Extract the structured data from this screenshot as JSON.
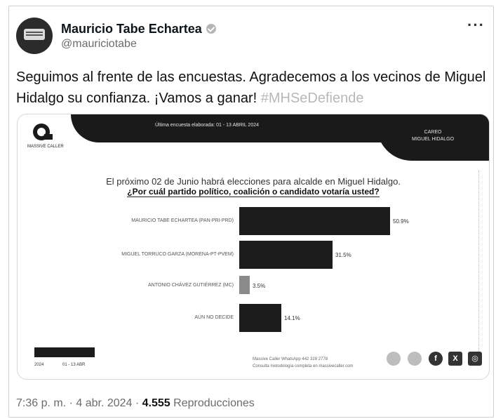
{
  "tweet": {
    "author_name": "Mauricio Tabe Echartea",
    "handle": "@mauriciotabe",
    "more_label": "···",
    "text": "Seguimos al frente de las encuestas. Agradecemos a los vecinos de Miguel Hidalgo su confianza. ¡Vamos a ganar!",
    "hashtag": "#MHSeDefiende"
  },
  "poll": {
    "survey_date": "Última encuesta elaborada:  01 - 13 ABRIL 2024",
    "careo_label": "CAREO",
    "careo_sub": "MIGUEL HIDALGO",
    "logo_text": "MASSIVE CALLER",
    "question_intro": "El próximo 02 de Junio habrá elecciones para alcalde en Miguel Hidalgo.",
    "question_main": "¿Por cuál partido político, coalición o candidato votaría usted?",
    "footer_line1": "Massive Caller WhatsApp 442 328 2778",
    "footer_line2": "Consulta metodología completa en massivecaller.com",
    "legend_text": "2024",
    "legend_text2": "01 - 13 ABR"
  },
  "chart_data": {
    "type": "bar",
    "orientation": "horizontal",
    "title": "",
    "categories": [
      "MAURICIO TABE ECHARTEA (PAN-PRI-PRD)",
      "MIGUEL TORRUCO GARZA (MORENA-PT-PVEM)",
      "ANTONIO CHÁVEZ GUTIÉRREZ (MC)",
      "AÚN NO DECIDE"
    ],
    "values": [
      50.9,
      31.5,
      3.5,
      14.1
    ],
    "value_labels": [
      "50.9%",
      "31.5%",
      "3.5%",
      "14.1%"
    ],
    "colors": [
      "#1c1c1c",
      "#1c1c1c",
      "#8a8a8a",
      "#1c1c1c"
    ],
    "xlim": [
      0,
      65
    ]
  },
  "meta": {
    "time": "7:36 p. m. · 4 abr. 2024 · ",
    "views_count": "4.555",
    "views_label": " Reproducciones"
  }
}
